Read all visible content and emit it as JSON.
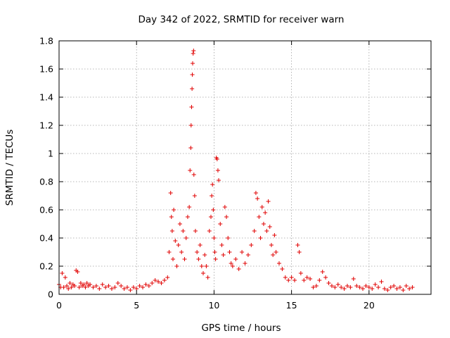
{
  "chart_data": {
    "type": "scatter",
    "title": "Day 342 of 2022, SRMTID for receiver warn",
    "xlabel": "GPS time / hours",
    "ylabel": "SRMTID / TECUs",
    "xlim": [
      0,
      24
    ],
    "ylim": [
      0,
      1.8
    ],
    "xticks": [
      0,
      5,
      10,
      15,
      20
    ],
    "xtick_labels": [
      "0",
      "5",
      "10",
      "15",
      "20"
    ],
    "yticks": [
      0,
      0.2,
      0.4,
      0.6,
      0.8,
      1.0,
      1.2,
      1.4,
      1.6,
      1.8
    ],
    "ytick_labels": [
      "0",
      "0.2",
      "0.4",
      "0.6",
      "0.8",
      "1",
      "1.2",
      "1.4",
      "1.6",
      "1.8"
    ],
    "grid": true,
    "marker": "+",
    "series": [
      {
        "name": "SRMTID",
        "color": "#e00000",
        "points": [
          [
            0.0,
            0.07
          ],
          [
            0.1,
            0.05
          ],
          [
            0.2,
            0.15
          ],
          [
            0.3,
            0.05
          ],
          [
            0.4,
            0.12
          ],
          [
            0.5,
            0.06
          ],
          [
            0.6,
            0.04
          ],
          [
            0.7,
            0.08
          ],
          [
            0.8,
            0.05
          ],
          [
            0.9,
            0.07
          ],
          [
            1.0,
            0.06
          ],
          [
            1.1,
            0.17
          ],
          [
            1.2,
            0.16
          ],
          [
            1.3,
            0.05
          ],
          [
            1.4,
            0.08
          ],
          [
            1.5,
            0.06
          ],
          [
            1.6,
            0.07
          ],
          [
            1.7,
            0.05
          ],
          [
            1.8,
            0.08
          ],
          [
            1.9,
            0.06
          ],
          [
            2.0,
            0.07
          ],
          [
            2.2,
            0.05
          ],
          [
            2.4,
            0.06
          ],
          [
            2.6,
            0.04
          ],
          [
            2.8,
            0.07
          ],
          [
            3.0,
            0.05
          ],
          [
            3.2,
            0.06
          ],
          [
            3.4,
            0.04
          ],
          [
            3.6,
            0.05
          ],
          [
            3.8,
            0.08
          ],
          [
            4.0,
            0.06
          ],
          [
            4.2,
            0.04
          ],
          [
            4.4,
            0.05
          ],
          [
            4.6,
            0.03
          ],
          [
            4.8,
            0.05
          ],
          [
            5.0,
            0.04
          ],
          [
            5.2,
            0.06
          ],
          [
            5.4,
            0.05
          ],
          [
            5.6,
            0.07
          ],
          [
            5.8,
            0.06
          ],
          [
            6.0,
            0.08
          ],
          [
            6.2,
            0.1
          ],
          [
            6.4,
            0.09
          ],
          [
            6.6,
            0.08
          ],
          [
            6.8,
            0.1
          ],
          [
            7.0,
            0.12
          ],
          [
            7.1,
            0.3
          ],
          [
            7.2,
            0.72
          ],
          [
            7.25,
            0.55
          ],
          [
            7.3,
            0.45
          ],
          [
            7.35,
            0.25
          ],
          [
            7.4,
            0.6
          ],
          [
            7.5,
            0.38
          ],
          [
            7.6,
            0.2
          ],
          [
            7.7,
            0.35
          ],
          [
            7.8,
            0.5
          ],
          [
            7.9,
            0.3
          ],
          [
            8.0,
            0.45
          ],
          [
            8.1,
            0.25
          ],
          [
            8.2,
            0.4
          ],
          [
            8.3,
            0.55
          ],
          [
            8.4,
            0.62
          ],
          [
            8.45,
            0.88
          ],
          [
            8.5,
            1.04
          ],
          [
            8.52,
            1.2
          ],
          [
            8.55,
            1.33
          ],
          [
            8.58,
            1.46
          ],
          [
            8.6,
            1.56
          ],
          [
            8.62,
            1.64
          ],
          [
            8.65,
            1.71
          ],
          [
            8.68,
            1.73
          ],
          [
            8.7,
            0.85
          ],
          [
            8.75,
            0.7
          ],
          [
            8.8,
            0.45
          ],
          [
            8.9,
            0.3
          ],
          [
            9.0,
            0.25
          ],
          [
            9.1,
            0.35
          ],
          [
            9.2,
            0.2
          ],
          [
            9.3,
            0.15
          ],
          [
            9.4,
            0.28
          ],
          [
            9.5,
            0.2
          ],
          [
            9.6,
            0.12
          ],
          [
            9.7,
            0.45
          ],
          [
            9.8,
            0.55
          ],
          [
            9.85,
            0.7
          ],
          [
            9.9,
            0.78
          ],
          [
            9.95,
            0.6
          ],
          [
            10.0,
            0.4
          ],
          [
            10.05,
            0.3
          ],
          [
            10.1,
            0.25
          ],
          [
            10.15,
            0.97
          ],
          [
            10.2,
            0.96
          ],
          [
            10.25,
            0.88
          ],
          [
            10.3,
            0.81
          ],
          [
            10.4,
            0.5
          ],
          [
            10.5,
            0.35
          ],
          [
            10.6,
            0.28
          ],
          [
            10.7,
            0.62
          ],
          [
            10.8,
            0.55
          ],
          [
            10.9,
            0.4
          ],
          [
            11.0,
            0.3
          ],
          [
            11.1,
            0.22
          ],
          [
            11.2,
            0.2
          ],
          [
            11.4,
            0.25
          ],
          [
            11.6,
            0.18
          ],
          [
            11.8,
            0.3
          ],
          [
            12.0,
            0.22
          ],
          [
            12.2,
            0.28
          ],
          [
            12.4,
            0.35
          ],
          [
            12.6,
            0.45
          ],
          [
            12.7,
            0.72
          ],
          [
            12.8,
            0.68
          ],
          [
            12.9,
            0.55
          ],
          [
            13.0,
            0.4
          ],
          [
            13.1,
            0.62
          ],
          [
            13.2,
            0.5
          ],
          [
            13.3,
            0.58
          ],
          [
            13.4,
            0.45
          ],
          [
            13.5,
            0.66
          ],
          [
            13.6,
            0.48
          ],
          [
            13.7,
            0.35
          ],
          [
            13.8,
            0.28
          ],
          [
            13.9,
            0.42
          ],
          [
            14.0,
            0.3
          ],
          [
            14.2,
            0.22
          ],
          [
            14.4,
            0.18
          ],
          [
            14.6,
            0.12
          ],
          [
            14.8,
            0.1
          ],
          [
            15.0,
            0.12
          ],
          [
            15.2,
            0.1
          ],
          [
            15.4,
            0.35
          ],
          [
            15.5,
            0.3
          ],
          [
            15.6,
            0.15
          ],
          [
            15.8,
            0.1
          ],
          [
            16.0,
            0.12
          ],
          [
            16.2,
            0.11
          ],
          [
            16.4,
            0.05
          ],
          [
            16.6,
            0.06
          ],
          [
            16.8,
            0.1
          ],
          [
            17.0,
            0.16
          ],
          [
            17.2,
            0.12
          ],
          [
            17.4,
            0.08
          ],
          [
            17.6,
            0.06
          ],
          [
            17.8,
            0.05
          ],
          [
            18.0,
            0.07
          ],
          [
            18.2,
            0.05
          ],
          [
            18.4,
            0.04
          ],
          [
            18.6,
            0.06
          ],
          [
            18.8,
            0.05
          ],
          [
            19.0,
            0.11
          ],
          [
            19.2,
            0.06
          ],
          [
            19.4,
            0.05
          ],
          [
            19.6,
            0.04
          ],
          [
            19.8,
            0.06
          ],
          [
            20.0,
            0.05
          ],
          [
            20.2,
            0.04
          ],
          [
            20.4,
            0.07
          ],
          [
            20.6,
            0.05
          ],
          [
            20.8,
            0.09
          ],
          [
            21.0,
            0.04
          ],
          [
            21.2,
            0.03
          ],
          [
            21.4,
            0.05
          ],
          [
            21.6,
            0.06
          ],
          [
            21.8,
            0.04
          ],
          [
            22.0,
            0.05
          ],
          [
            22.2,
            0.03
          ],
          [
            22.4,
            0.06
          ],
          [
            22.6,
            0.04
          ],
          [
            22.8,
            0.05
          ]
        ]
      }
    ]
  }
}
